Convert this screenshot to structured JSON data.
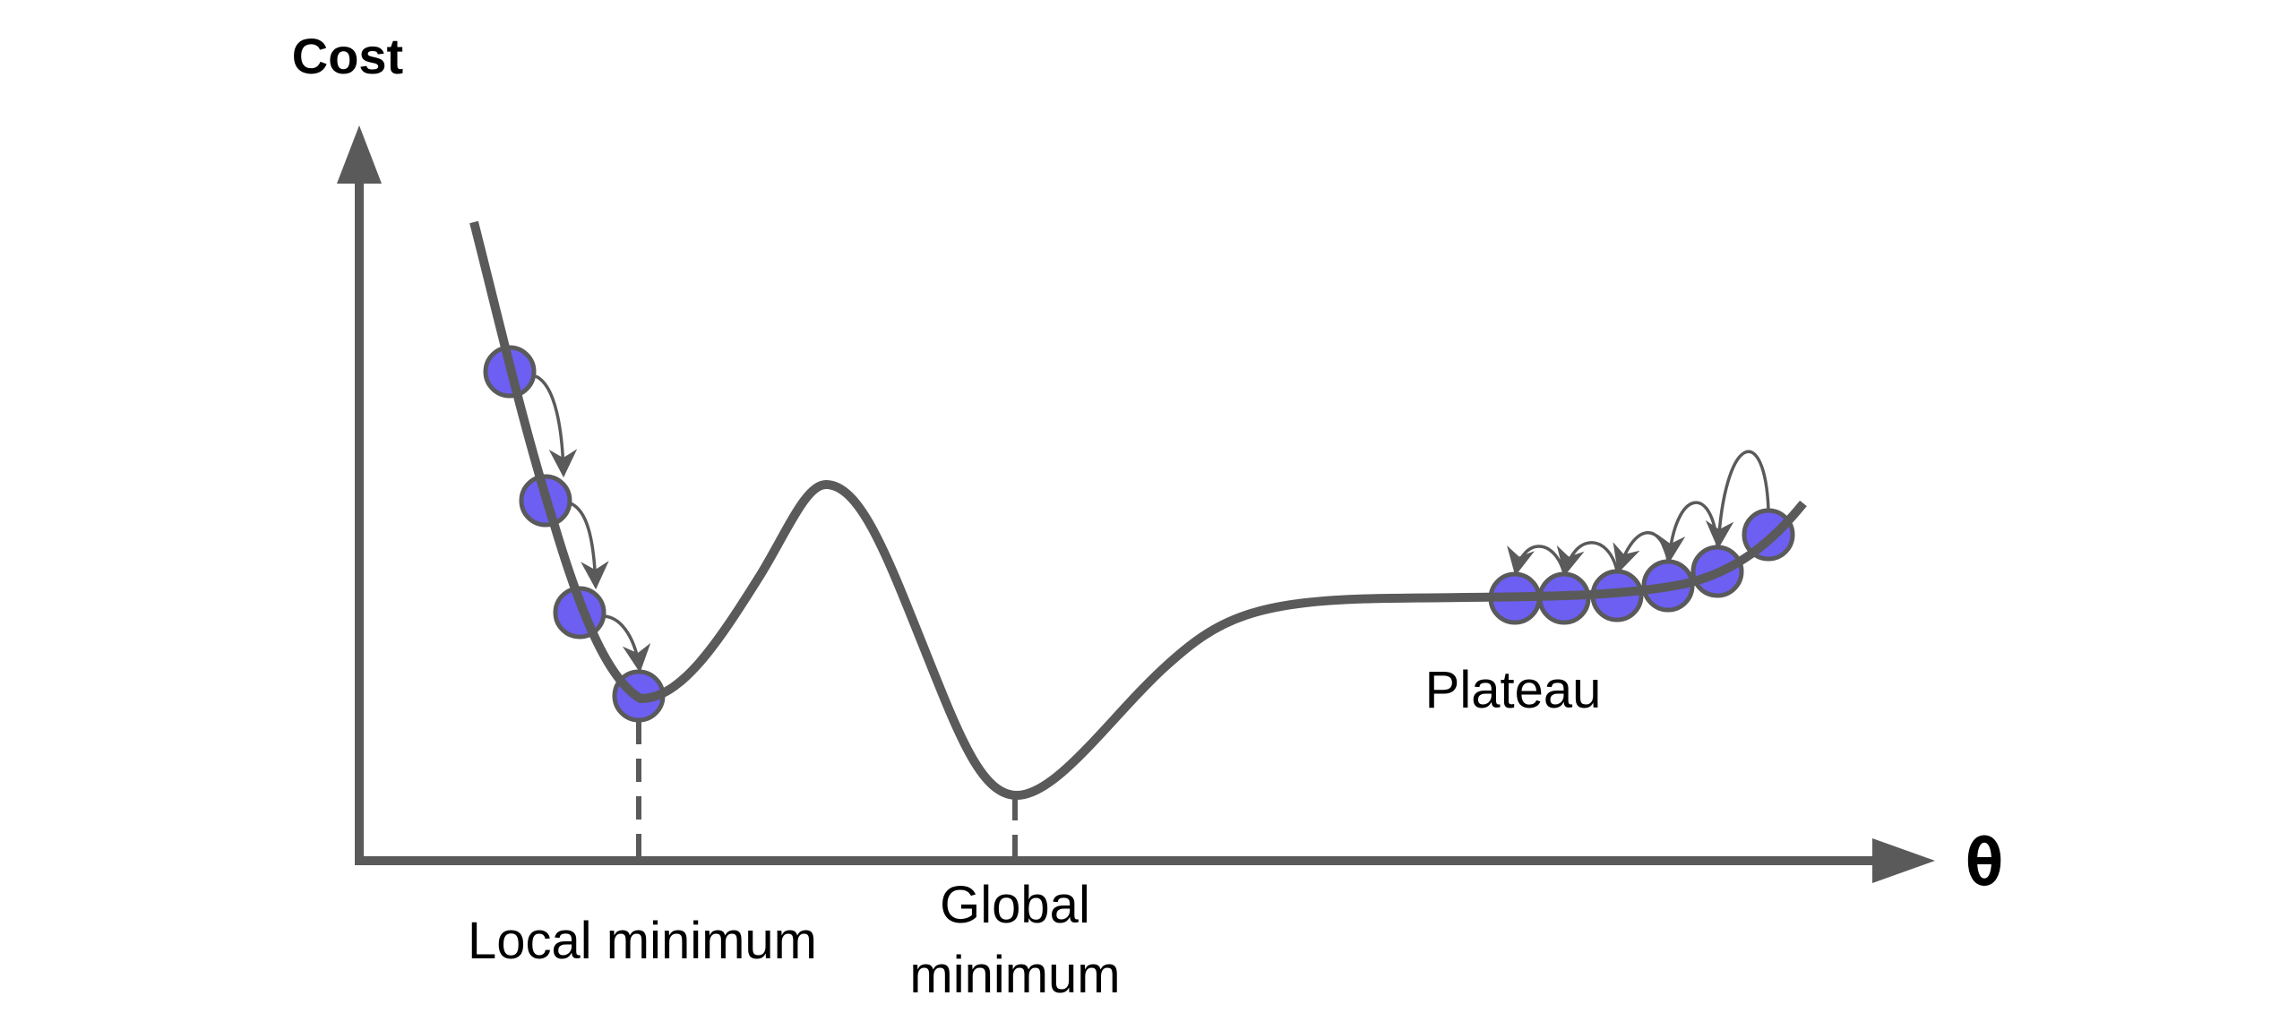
{
  "axes": {
    "y_label": "Cost",
    "x_label": "θ"
  },
  "annotations": {
    "local_minimum": "Local minimum",
    "global_minimum_line1": "Global",
    "global_minimum_line2": "minimum",
    "plateau": "Plateau"
  },
  "colors": {
    "curve": "#5a5a5a",
    "ball_fill": "#6c5ff2",
    "ball_band": "#3a2dbf",
    "ball_stroke": "#5a5a5a"
  }
}
